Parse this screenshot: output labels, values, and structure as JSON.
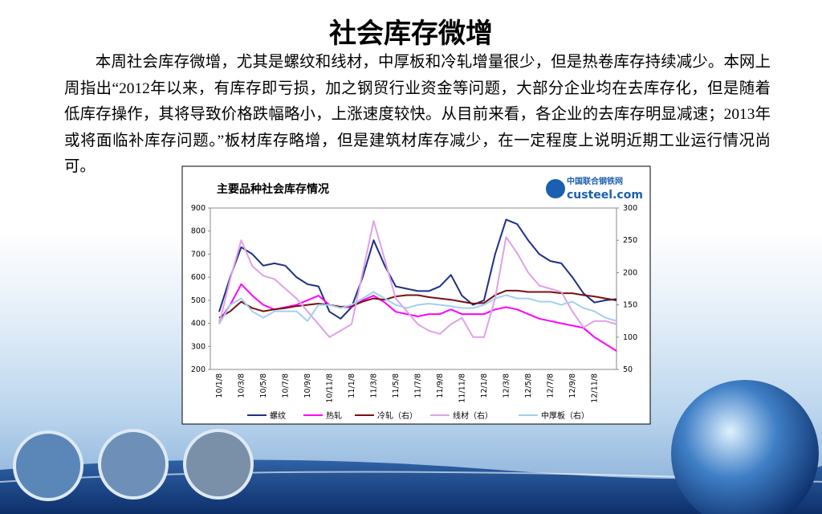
{
  "title": "社会库存微增",
  "paragraph": "本周社会库存微增，尤其是螺纹和线材，中厚板和冷轧增量很少，但是热卷库存持续减少。本网上周指出“2012年以来，有库存即亏损，加之钢贸行业资金等问题，大部分企业均在去库存化，但是随着低库存操作，其将导致价格跌幅略小，上涨速度较快。从目前来看，各企业的去库存明显减速；2013年或将面临补库存问题。”板材库存略增，但是建筑材库存减少，在一定程度上说明近期工业运行情况尚可。",
  "chart_data": {
    "type": "line",
    "title": "主要品种社会库存情况",
    "logo": [
      "中国联合钢铁网",
      "custeel.com"
    ],
    "categories": [
      "10/1/8",
      null,
      "10/3/8",
      null,
      "10/5/8",
      null,
      "10/7/8",
      null,
      "10/9/8",
      null,
      "10/11/8",
      null,
      "11/1/8",
      null,
      "11/3/8",
      null,
      "11/5/8",
      null,
      "11/7/8",
      null,
      "11/9/8",
      null,
      "11/11/8",
      null,
      "12/1/8",
      null,
      "12/3/8",
      null,
      "12/5/8",
      null,
      "12/7/8",
      null,
      "12/9/8",
      null,
      "12/11/8",
      null,
      null
    ],
    "series": [
      {
        "name": "螺纹",
        "color": "#1f2f8a",
        "values": [
          450,
          600,
          730,
          700,
          650,
          660,
          650,
          600,
          570,
          560,
          450,
          420,
          470,
          600,
          760,
          650,
          560,
          550,
          540,
          540,
          560,
          610,
          520,
          480,
          500,
          700,
          850,
          830,
          760,
          700,
          670,
          660,
          600,
          530,
          490,
          500,
          505
        ]
      },
      {
        "name": "热轧",
        "color": "#ff00ff",
        "values": [
          410,
          480,
          570,
          520,
          480,
          460,
          470,
          480,
          500,
          520,
          480,
          470,
          470,
          500,
          520,
          490,
          450,
          440,
          430,
          440,
          440,
          460,
          440,
          440,
          440,
          460,
          470,
          460,
          440,
          420,
          410,
          400,
          390,
          380,
          340,
          310,
          280
        ]
      },
      {
        "name": "冷轧（右）",
        "color": "#7a1010",
        "axis": "y2",
        "values": [
          130,
          140,
          155,
          145,
          140,
          143,
          145,
          148,
          150,
          152,
          150,
          147,
          148,
          155,
          160,
          158,
          163,
          165,
          165,
          162,
          160,
          158,
          155,
          152,
          153,
          165,
          172,
          172,
          170,
          170,
          170,
          168,
          168,
          165,
          163,
          160,
          157
        ]
      },
      {
        "name": "线材（右）",
        "color": "#e0a0e8",
        "axis": "y2",
        "values": [
          120,
          190,
          250,
          210,
          195,
          190,
          175,
          160,
          140,
          120,
          100,
          110,
          120,
          200,
          280,
          220,
          160,
          140,
          120,
          110,
          105,
          120,
          130,
          100,
          100,
          160,
          255,
          230,
          200,
          180,
          175,
          170,
          140,
          115,
          125,
          125,
          120
        ]
      },
      {
        "name": "中厚板（右）",
        "color": "#a0d0f0",
        "axis": "y2",
        "values": [
          120,
          150,
          160,
          140,
          130,
          140,
          140,
          140,
          125,
          150,
          150,
          145,
          150,
          160,
          170,
          160,
          150,
          145,
          150,
          152,
          150,
          148,
          145,
          145,
          150,
          160,
          165,
          160,
          160,
          155,
          155,
          150,
          155,
          145,
          140,
          130,
          125
        ]
      }
    ],
    "ylim": [
      200,
      900
    ],
    "yticks": [
      200,
      300,
      400,
      500,
      600,
      700,
      800,
      900
    ],
    "y2lim": [
      50,
      300
    ],
    "y2ticks": [
      50,
      100,
      150,
      200,
      250,
      300
    ],
    "grid": false,
    "legend": "bottom"
  }
}
